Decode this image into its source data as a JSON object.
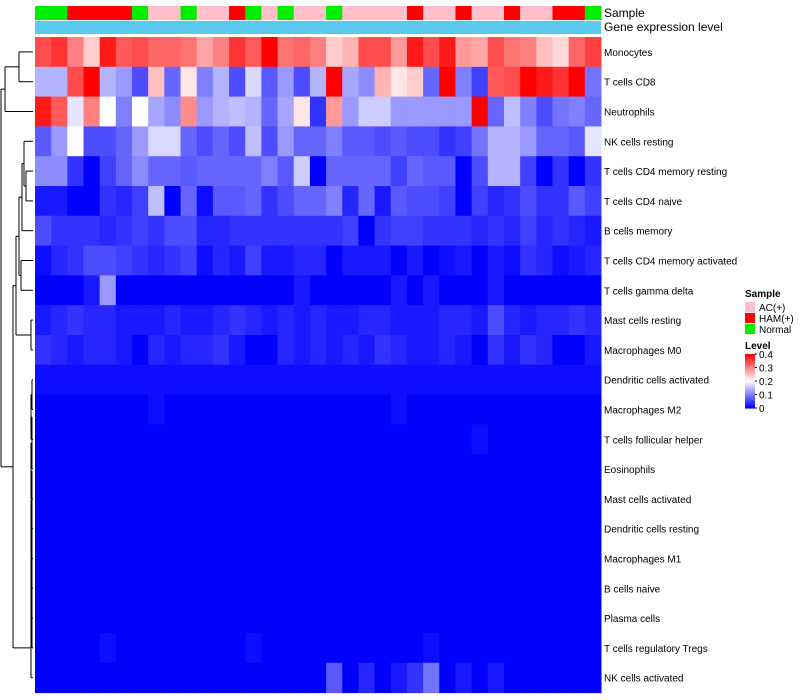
{
  "chart_data": {
    "type": "heatmap",
    "title": "",
    "annotation_tracks": [
      {
        "label": "Sample"
      },
      {
        "label": "Gene expression level"
      }
    ],
    "sample_annotation": [
      "Normal",
      "Normal",
      "HAM(+)",
      "HAM(+)",
      "HAM(+)",
      "HAM(+)",
      "Normal",
      "AC(+)",
      "AC(+)",
      "Normal",
      "AC(+)",
      "AC(+)",
      "HAM(+)",
      "Normal",
      "AC(+)",
      "Normal",
      "AC(+)",
      "AC(+)",
      "Normal",
      "AC(+)",
      "AC(+)",
      "AC(+)",
      "AC(+)",
      "HAM(+)",
      "AC(+)",
      "AC(+)",
      "HAM(+)",
      "AC(+)",
      "AC(+)",
      "HAM(+)",
      "AC(+)",
      "AC(+)",
      "HAM(+)",
      "HAM(+)",
      "Normal"
    ],
    "rows": [
      "Monocytes",
      "T cells CD8",
      "Neutrophils",
      "NK cells resting",
      "T cells CD4 memory resting",
      "T cells CD4 naive",
      "B cells memory",
      "T cells CD4 memory activated",
      "T cells gamma delta",
      "Mast cells resting",
      "Macrophages M0",
      "Dendritic cells activated",
      "Macrophages M2",
      "T cells follicular helper",
      "Eosinophils",
      "Mast cells activated",
      "Dendritic cells resting",
      "Macrophages M1",
      "B cells naive",
      "Plasma cells",
      "T cells regulatory  Tregs",
      "NK cells activated"
    ],
    "ncols": 35,
    "values": [
      [
        0.34,
        0.36,
        0.3,
        0.24,
        0.38,
        0.33,
        0.34,
        0.32,
        0.32,
        0.31,
        0.27,
        0.3,
        0.36,
        0.33,
        0.4,
        0.31,
        0.32,
        0.3,
        0.24,
        0.26,
        0.34,
        0.34,
        0.28,
        0.38,
        0.34,
        0.38,
        0.28,
        0.27,
        0.34,
        0.31,
        0.3,
        0.25,
        0.23,
        0.32,
        0.35
      ],
      [
        0.14,
        0.14,
        0.34,
        0.4,
        0.14,
        0.12,
        0.06,
        0.25,
        0.08,
        0.22,
        0.1,
        0.14,
        0.06,
        0.17,
        0.07,
        0.12,
        0.06,
        0.14,
        0.4,
        0.13,
        0.11,
        0.26,
        0.22,
        0.24,
        0.08,
        0.4,
        0.1,
        0.05,
        0.33,
        0.34,
        0.4,
        0.38,
        0.36,
        0.4,
        0.09
      ],
      [
        0.38,
        0.33,
        0.18,
        0.3,
        0.2,
        0.1,
        0.2,
        0.13,
        0.11,
        0.29,
        0.12,
        0.14,
        0.15,
        0.14,
        0.08,
        0.13,
        0.22,
        0.04,
        0.28,
        0.12,
        0.16,
        0.16,
        0.12,
        0.12,
        0.12,
        0.12,
        0.12,
        0.4,
        0.08,
        0.15,
        0.1,
        0.06,
        0.09,
        0.1,
        0.08
      ],
      [
        0.07,
        0.12,
        0.2,
        0.06,
        0.06,
        0.08,
        0.12,
        0.17,
        0.17,
        0.08,
        0.06,
        0.08,
        0.06,
        0.15,
        0.06,
        0.12,
        0.08,
        0.08,
        0.1,
        0.07,
        0.07,
        0.06,
        0.07,
        0.06,
        0.06,
        0.04,
        0.05,
        0.09,
        0.14,
        0.14,
        0.12,
        0.08,
        0.08,
        0.07,
        0.18
      ],
      [
        0.11,
        0.11,
        0.04,
        0.0,
        0.05,
        0.08,
        0.11,
        0.08,
        0.08,
        0.07,
        0.08,
        0.08,
        0.08,
        0.08,
        0.1,
        0.07,
        0.16,
        0.0,
        0.08,
        0.08,
        0.08,
        0.08,
        0.05,
        0.08,
        0.07,
        0.07,
        0.0,
        0.06,
        0.14,
        0.14,
        0.05,
        0.0,
        0.04,
        0.0,
        0.04
      ],
      [
        0.02,
        0.02,
        0.0,
        0.0,
        0.04,
        0.03,
        0.05,
        0.15,
        0.0,
        0.08,
        0.01,
        0.07,
        0.07,
        0.08,
        0.04,
        0.06,
        0.08,
        0.08,
        0.1,
        0.03,
        0.08,
        0.02,
        0.07,
        0.06,
        0.06,
        0.05,
        0.0,
        0.05,
        0.03,
        0.04,
        0.06,
        0.04,
        0.04,
        0.07,
        0.05
      ],
      [
        0.06,
        0.04,
        0.04,
        0.04,
        0.03,
        0.04,
        0.05,
        0.04,
        0.06,
        0.06,
        0.03,
        0.03,
        0.04,
        0.04,
        0.04,
        0.04,
        0.04,
        0.04,
        0.04,
        0.05,
        0.0,
        0.04,
        0.05,
        0.05,
        0.04,
        0.04,
        0.04,
        0.03,
        0.04,
        0.03,
        0.05,
        0.03,
        0.04,
        0.03,
        0.02
      ],
      [
        0.01,
        0.03,
        0.04,
        0.06,
        0.06,
        0.05,
        0.04,
        0.03,
        0.04,
        0.05,
        0.01,
        0.03,
        0.02,
        0.05,
        0.02,
        0.02,
        0.03,
        0.03,
        0.0,
        0.02,
        0.02,
        0.02,
        0.0,
        0.02,
        0.0,
        0.01,
        0.02,
        0.0,
        0.02,
        0.01,
        0.04,
        0.03,
        0.01,
        0.02,
        0.03
      ],
      [
        0.0,
        0.0,
        0.0,
        0.02,
        0.12,
        0.0,
        0.0,
        0.0,
        0.0,
        0.0,
        0.0,
        0.0,
        0.0,
        0.0,
        0.0,
        0.0,
        0.02,
        0.0,
        0.0,
        0.0,
        0.0,
        0.0,
        0.02,
        0.0,
        0.02,
        0.0,
        0.0,
        0.0,
        0.02,
        0.0,
        0.0,
        0.0,
        0.0,
        0.0,
        0.0
      ],
      [
        0.02,
        0.03,
        0.04,
        0.03,
        0.03,
        0.02,
        0.02,
        0.02,
        0.03,
        0.02,
        0.02,
        0.03,
        0.04,
        0.03,
        0.02,
        0.03,
        0.02,
        0.03,
        0.02,
        0.02,
        0.03,
        0.03,
        0.02,
        0.02,
        0.02,
        0.03,
        0.03,
        0.02,
        0.06,
        0.03,
        0.02,
        0.03,
        0.03,
        0.04,
        0.03
      ],
      [
        0.04,
        0.03,
        0.02,
        0.03,
        0.03,
        0.02,
        0.0,
        0.03,
        0.02,
        0.03,
        0.03,
        0.04,
        0.02,
        0.0,
        0.0,
        0.03,
        0.02,
        0.03,
        0.02,
        0.03,
        0.02,
        0.04,
        0.03,
        0.02,
        0.02,
        0.03,
        0.02,
        0.0,
        0.04,
        0.02,
        0.04,
        0.03,
        0.0,
        0.0,
        0.02
      ],
      [
        0.01,
        0.01,
        0.01,
        0.01,
        0.01,
        0.01,
        0.01,
        0.01,
        0.01,
        0.01,
        0.01,
        0.01,
        0.01,
        0.01,
        0.01,
        0.01,
        0.01,
        0.01,
        0.01,
        0.01,
        0.01,
        0.01,
        0.01,
        0.01,
        0.01,
        0.01,
        0.01,
        0.01,
        0.01,
        0.01,
        0.01,
        0.01,
        0.01,
        0.01,
        0.01
      ],
      [
        0.0,
        0.0,
        0.0,
        0.0,
        0.0,
        0.0,
        0.0,
        0.01,
        0.0,
        0.0,
        0.0,
        0.0,
        0.0,
        0.0,
        0.0,
        0.0,
        0.0,
        0.0,
        0.0,
        0.0,
        0.0,
        0.0,
        0.01,
        0.0,
        0.0,
        0.0,
        0.0,
        0.0,
        0.0,
        0.0,
        0.0,
        0.0,
        0.0,
        0.0,
        0.0
      ],
      [
        0.0,
        0.0,
        0.0,
        0.0,
        0.0,
        0.0,
        0.0,
        0.0,
        0.0,
        0.0,
        0.0,
        0.0,
        0.0,
        0.0,
        0.0,
        0.0,
        0.0,
        0.0,
        0.0,
        0.0,
        0.0,
        0.0,
        0.0,
        0.0,
        0.0,
        0.0,
        0.0,
        0.01,
        0.0,
        0.0,
        0.0,
        0.0,
        0.0,
        0.0,
        0.0
      ],
      [
        0.0,
        0.0,
        0.0,
        0.0,
        0.0,
        0.0,
        0.0,
        0.0,
        0.0,
        0.0,
        0.0,
        0.0,
        0.0,
        0.0,
        0.0,
        0.0,
        0.0,
        0.0,
        0.0,
        0.0,
        0.0,
        0.0,
        0.0,
        0.0,
        0.0,
        0.0,
        0.0,
        0.0,
        0.0,
        0.0,
        0.0,
        0.0,
        0.0,
        0.0,
        0.0
      ],
      [
        0.0,
        0.0,
        0.0,
        0.0,
        0.0,
        0.0,
        0.0,
        0.0,
        0.0,
        0.0,
        0.0,
        0.0,
        0.0,
        0.0,
        0.0,
        0.0,
        0.0,
        0.0,
        0.0,
        0.0,
        0.0,
        0.0,
        0.0,
        0.0,
        0.0,
        0.0,
        0.0,
        0.0,
        0.0,
        0.0,
        0.0,
        0.0,
        0.0,
        0.0,
        0.0
      ],
      [
        0.0,
        0.0,
        0.0,
        0.0,
        0.0,
        0.0,
        0.0,
        0.0,
        0.0,
        0.0,
        0.0,
        0.0,
        0.0,
        0.0,
        0.0,
        0.0,
        0.0,
        0.0,
        0.0,
        0.0,
        0.0,
        0.0,
        0.0,
        0.0,
        0.0,
        0.0,
        0.0,
        0.0,
        0.0,
        0.0,
        0.0,
        0.0,
        0.0,
        0.0,
        0.0
      ],
      [
        0.0,
        0.0,
        0.0,
        0.0,
        0.0,
        0.0,
        0.0,
        0.0,
        0.0,
        0.0,
        0.0,
        0.0,
        0.0,
        0.0,
        0.0,
        0.0,
        0.0,
        0.0,
        0.0,
        0.0,
        0.0,
        0.0,
        0.0,
        0.0,
        0.0,
        0.0,
        0.0,
        0.0,
        0.0,
        0.0,
        0.0,
        0.0,
        0.0,
        0.0,
        0.0
      ],
      [
        0.0,
        0.0,
        0.0,
        0.0,
        0.0,
        0.0,
        0.0,
        0.0,
        0.0,
        0.0,
        0.0,
        0.0,
        0.0,
        0.0,
        0.0,
        0.0,
        0.0,
        0.0,
        0.0,
        0.0,
        0.0,
        0.0,
        0.0,
        0.0,
        0.0,
        0.0,
        0.0,
        0.0,
        0.0,
        0.0,
        0.0,
        0.0,
        0.0,
        0.0,
        0.0
      ],
      [
        0.0,
        0.0,
        0.0,
        0.0,
        0.0,
        0.0,
        0.0,
        0.0,
        0.0,
        0.0,
        0.0,
        0.0,
        0.0,
        0.0,
        0.0,
        0.0,
        0.0,
        0.0,
        0.0,
        0.0,
        0.0,
        0.0,
        0.0,
        0.0,
        0.0,
        0.0,
        0.0,
        0.0,
        0.0,
        0.0,
        0.0,
        0.0,
        0.0,
        0.0,
        0.0
      ],
      [
        0.0,
        0.0,
        0.0,
        0.0,
        0.01,
        0.0,
        0.0,
        0.0,
        0.0,
        0.0,
        0.0,
        0.0,
        0.0,
        0.01,
        0.0,
        0.0,
        0.0,
        0.0,
        0.0,
        0.0,
        0.0,
        0.0,
        0.0,
        0.0,
        0.01,
        0.0,
        0.0,
        0.0,
        0.0,
        0.0,
        0.0,
        0.0,
        0.0,
        0.0,
        0.0
      ],
      [
        0.0,
        0.0,
        0.0,
        0.0,
        0.0,
        0.0,
        0.0,
        0.0,
        0.0,
        0.0,
        0.0,
        0.0,
        0.0,
        0.0,
        0.0,
        0.0,
        0.0,
        0.0,
        0.07,
        0.0,
        0.03,
        0.0,
        0.02,
        0.04,
        0.09,
        0.0,
        0.02,
        0.0,
        0.02,
        0.0,
        0.0,
        0.0,
        0.0,
        0.0,
        0.0
      ]
    ],
    "sample_legend": {
      "title": "Sample",
      "entries": [
        {
          "label": "AC(+)",
          "color": "#ffc0cb"
        },
        {
          "label": "HAM(+)",
          "color": "#ff0000"
        },
        {
          "label": "Normal",
          "color": "#00ee00"
        }
      ]
    },
    "level_legend": {
      "title": "Level",
      "ticks": [
        "0.4",
        "0.3",
        "0.2",
        "0.1",
        "0"
      ],
      "tick_values": [
        0.4,
        0.3,
        0.2,
        0.1,
        0
      ]
    },
    "color_scale": {
      "low": "#0000ff",
      "mid": "#ffffff",
      "high": "#ff0000",
      "min": 0,
      "max": 0.4
    },
    "gene_expression_color": "#5bc8ee",
    "legend_position": "right",
    "row_dendrogram": true
  }
}
